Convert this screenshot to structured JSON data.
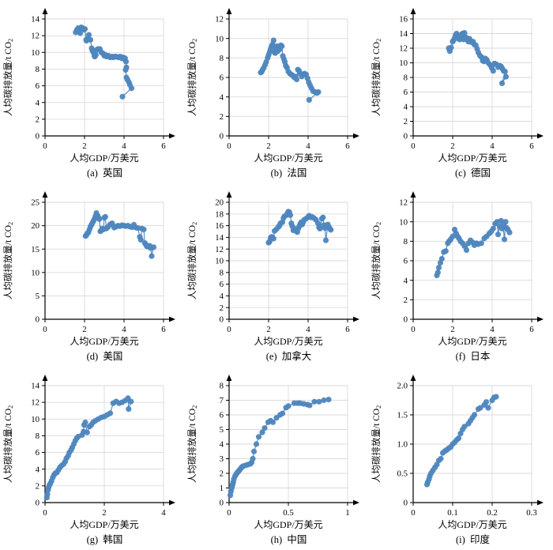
{
  "colors": {
    "marker": "#4E86BE",
    "line": "#4E86BE",
    "grid": "#DADADA",
    "axis": "#000000",
    "text": "#000000"
  },
  "axis_labels": {
    "x": "人均GDP/万美元",
    "y_main": "人均碳排放量/t CO",
    "y_sub": "2"
  },
  "chart_data": [
    {
      "type": "scatter",
      "caption": "(a)  英国",
      "country": "英国",
      "xlabel": "人均GDP/万美元",
      "ylabel": "人均碳排放量/t CO2",
      "xlim": [
        0,
        6
      ],
      "ylim": [
        0,
        14
      ],
      "xticks": [
        [
          0,
          "0"
        ],
        [
          2,
          "2"
        ],
        [
          4,
          "4"
        ],
        [
          6,
          "6"
        ]
      ],
      "yticks": [
        [
          0,
          "0"
        ],
        [
          2,
          "2"
        ],
        [
          4,
          "4"
        ],
        [
          6,
          "6"
        ],
        [
          8,
          "8"
        ],
        [
          10,
          "10"
        ],
        [
          12,
          "12"
        ],
        [
          14,
          "14"
        ]
      ],
      "x": [
        1.55,
        1.62,
        1.68,
        1.72,
        1.78,
        1.83,
        1.9,
        1.97,
        2.02,
        2.08,
        2.1,
        2.15,
        2.22,
        2.3,
        2.36,
        2.4,
        2.45,
        2.5,
        2.52,
        2.57,
        2.62,
        2.68,
        2.73,
        2.78,
        2.85,
        2.92,
        3.0,
        3.05,
        3.12,
        3.2,
        3.3,
        3.38,
        3.45,
        3.52,
        3.6,
        3.7,
        3.8,
        3.88,
        3.95,
        4.0,
        4.05,
        4.1,
        4.12,
        4.08,
        4.12,
        4.18,
        4.25,
        4.3,
        4.38,
        3.92
      ],
      "y": [
        12.4,
        12.7,
        12.9,
        12.6,
        12.3,
        13.0,
        12.9,
        12.7,
        12.8,
        11.5,
        11.4,
        11.6,
        12.1,
        11.5,
        10.5,
        10.2,
        10.0,
        9.6,
        9.5,
        9.7,
        10.3,
        10.4,
        10.4,
        10.4,
        10.0,
        9.9,
        9.6,
        9.7,
        9.5,
        9.6,
        9.4,
        9.5,
        9.4,
        9.5,
        9.5,
        9.4,
        9.5,
        9.3,
        9.4,
        9.2,
        9.3,
        8.9,
        8.2,
        7.9,
        7.0,
        6.7,
        6.4,
        6.1,
        5.7,
        4.7
      ]
    },
    {
      "type": "scatter",
      "caption": "(b)  法国",
      "country": "法国",
      "xlabel": "人均GDP/万美元",
      "ylabel": "人均碳排放量/t CO2",
      "xlim": [
        0,
        6
      ],
      "ylim": [
        0,
        12
      ],
      "xticks": [
        [
          0,
          "0"
        ],
        [
          2,
          "2"
        ],
        [
          4,
          "4"
        ],
        [
          6,
          "6"
        ]
      ],
      "yticks": [
        [
          0,
          "0"
        ],
        [
          2,
          "2"
        ],
        [
          4,
          "4"
        ],
        [
          6,
          "6"
        ],
        [
          8,
          "8"
        ],
        [
          10,
          "10"
        ],
        [
          12,
          "12"
        ]
      ],
      "x": [
        1.6,
        1.65,
        1.7,
        1.76,
        1.82,
        1.88,
        1.95,
        2.0,
        2.05,
        2.1,
        2.15,
        2.2,
        2.25,
        2.3,
        2.33,
        2.38,
        2.42,
        2.47,
        2.52,
        2.57,
        2.62,
        2.67,
        2.72,
        2.77,
        2.82,
        2.87,
        2.93,
        3.0,
        3.08,
        3.15,
        3.22,
        3.3,
        3.36,
        3.42,
        3.48,
        3.54,
        3.6,
        3.68,
        3.75,
        3.82,
        3.9,
        3.97,
        4.03,
        4.1,
        4.17,
        4.25,
        4.35,
        4.45,
        4.52,
        4.05
      ],
      "y": [
        6.5,
        6.6,
        6.8,
        7.0,
        7.3,
        7.6,
        8.0,
        8.3,
        8.6,
        8.9,
        9.2,
        9.4,
        9.8,
        8.6,
        8.5,
        9.0,
        9.2,
        8.7,
        9.1,
        8.9,
        9.3,
        9.2,
        8.2,
        7.9,
        7.6,
        7.2,
        7.0,
        6.6,
        6.4,
        6.3,
        6.2,
        6.0,
        6.1,
        5.8,
        6.8,
        6.7,
        6.4,
        6.1,
        6.3,
        6.4,
        6.3,
        5.9,
        5.5,
        5.2,
        4.9,
        4.6,
        4.5,
        4.4,
        4.5,
        3.7
      ]
    },
    {
      "type": "scatter",
      "caption": "(c)  德国",
      "country": "德国",
      "xlabel": "人均GDP/万美元",
      "ylabel": "人均碳排放量/t CO2",
      "xlim": [
        0,
        6
      ],
      "ylim": [
        0,
        16
      ],
      "xticks": [
        [
          0,
          "0"
        ],
        [
          2,
          "2"
        ],
        [
          4,
          "4"
        ],
        [
          6,
          "6"
        ]
      ],
      "yticks": [
        [
          0,
          "0"
        ],
        [
          2,
          "2"
        ],
        [
          4,
          "4"
        ],
        [
          6,
          "6"
        ],
        [
          8,
          "8"
        ],
        [
          10,
          "10"
        ],
        [
          12,
          "12"
        ],
        [
          14,
          "14"
        ],
        [
          16,
          "16"
        ]
      ],
      "x": [
        1.8,
        1.85,
        1.92,
        2.0,
        2.05,
        2.1,
        2.15,
        2.2,
        2.25,
        2.3,
        2.35,
        2.4,
        2.45,
        2.5,
        2.55,
        2.6,
        2.65,
        2.7,
        2.75,
        2.8,
        2.85,
        2.9,
        2.97,
        3.03,
        3.1,
        3.17,
        3.24,
        3.3,
        3.38,
        3.45,
        3.52,
        3.58,
        3.65,
        3.73,
        3.8,
        3.9,
        3.98,
        4.05,
        4.12,
        4.2,
        4.3,
        4.38,
        4.45,
        4.52,
        4.58,
        4.65,
        4.5,
        4.7
      ],
      "y": [
        12.0,
        11.6,
        12.1,
        12.9,
        13.1,
        13.4,
        13.8,
        14.0,
        13.5,
        13.3,
        13.2,
        13.6,
        13.9,
        14.0,
        13.2,
        14.1,
        13.5,
        13.4,
        13.1,
        12.9,
        13.3,
        13.0,
        12.8,
        12.9,
        12.5,
        12.4,
        11.9,
        11.4,
        11.0,
        10.8,
        10.3,
        10.2,
        10.6,
        10.4,
        10.0,
        9.7,
        9.3,
        8.9,
        9.9,
        9.8,
        9.4,
        9.6,
        9.5,
        9.2,
        8.9,
        8.8,
        7.2,
        8.1
      ]
    },
    {
      "type": "scatter",
      "caption": "(d)  美国",
      "country": "美国",
      "xlabel": "人均GDP/万美元",
      "ylabel": "人均碳排放量/t CO2",
      "xlim": [
        0,
        6
      ],
      "ylim": [
        0,
        25
      ],
      "xticks": [
        [
          0,
          "0"
        ],
        [
          2,
          "2"
        ],
        [
          4,
          "4"
        ],
        [
          6,
          "6"
        ]
      ],
      "yticks": [
        [
          0,
          "0"
        ],
        [
          5,
          "5"
        ],
        [
          10,
          "10"
        ],
        [
          15,
          "15"
        ],
        [
          20,
          "20"
        ],
        [
          25,
          "25"
        ]
      ],
      "x": [
        2.05,
        2.1,
        2.15,
        2.2,
        2.25,
        2.3,
        2.35,
        2.4,
        2.45,
        2.5,
        2.55,
        2.6,
        2.65,
        2.7,
        2.75,
        2.8,
        2.85,
        2.9,
        2.95,
        3.0,
        3.05,
        3.1,
        3.15,
        3.2,
        3.3,
        3.4,
        3.5,
        3.6,
        3.7,
        3.8,
        3.9,
        4.0,
        4.1,
        4.2,
        4.3,
        4.4,
        4.5,
        4.6,
        4.7,
        4.8,
        4.85,
        4.9,
        5.0,
        5.05,
        5.1,
        5.15,
        5.2,
        5.3,
        5.35,
        5.4,
        5.5
      ],
      "y": [
        17.8,
        18.0,
        18.4,
        18.6,
        19.2,
        19.8,
        20.2,
        20.6,
        21.0,
        21.4,
        22.0,
        22.7,
        22.2,
        21.8,
        21.4,
        18.8,
        19.0,
        19.4,
        19.2,
        21.7,
        21.9,
        19.4,
        19.6,
        19.8,
        20.3,
        20.5,
        19.6,
        19.8,
        20.0,
        19.9,
        20.1,
        20.0,
        19.9,
        20.0,
        19.8,
        19.7,
        20.2,
        19.6,
        19.5,
        17.6,
        17.0,
        19.4,
        19.2,
        16.3,
        16.0,
        15.6,
        15.5,
        15.7,
        15.2,
        13.5,
        15.4
      ]
    },
    {
      "type": "scatter",
      "caption": "(e)  加拿大",
      "country": "加拿大",
      "xlabel": "人均GDP/万美元",
      "ylabel": "人均碳排放量/t CO2",
      "xlim": [
        0,
        6
      ],
      "ylim": [
        0,
        20
      ],
      "xticks": [
        [
          0,
          "0"
        ],
        [
          2,
          "2"
        ],
        [
          4,
          "4"
        ],
        [
          6,
          "6"
        ]
      ],
      "yticks": [
        [
          0,
          "0"
        ],
        [
          2,
          "2"
        ],
        [
          4,
          "4"
        ],
        [
          6,
          "6"
        ],
        [
          8,
          "8"
        ],
        [
          10,
          "10"
        ],
        [
          12,
          "12"
        ],
        [
          14,
          "14"
        ],
        [
          16,
          "16"
        ],
        [
          18,
          "18"
        ],
        [
          20,
          "20"
        ]
      ],
      "x": [
        2.0,
        2.05,
        2.1,
        2.15,
        2.2,
        2.25,
        2.3,
        2.4,
        2.5,
        2.55,
        2.6,
        2.7,
        2.75,
        2.8,
        2.9,
        2.95,
        3.0,
        3.05,
        3.1,
        3.15,
        3.2,
        3.25,
        3.3,
        3.4,
        3.45,
        3.5,
        3.55,
        3.6,
        3.65,
        3.7,
        3.75,
        3.8,
        3.9,
        4.0,
        4.05,
        4.1,
        4.15,
        4.2,
        4.3,
        4.4,
        4.5,
        4.55,
        4.6,
        4.7,
        4.75,
        4.8,
        4.85,
        4.9,
        5.0,
        5.05,
        5.1,
        5.15
      ],
      "y": [
        13.1,
        13.3,
        13.9,
        14.1,
        14.0,
        13.8,
        15.1,
        15.4,
        15.8,
        16.0,
        16.4,
        16.6,
        17.3,
        17.6,
        17.8,
        18.1,
        18.4,
        18.3,
        17.8,
        16.4,
        15.9,
        15.2,
        15.5,
        15.1,
        14.9,
        15.5,
        15.9,
        16.3,
        16.6,
        16.2,
        16.6,
        17.0,
        17.2,
        17.5,
        17.7,
        17.6,
        17.4,
        17.5,
        17.3,
        17.0,
        16.4,
        15.7,
        15.5,
        17.2,
        17.4,
        16.1,
        15.6,
        13.5,
        16.2,
        15.8,
        15.5,
        15.3
      ]
    },
    {
      "type": "scatter",
      "caption": "(f)  日本",
      "country": "日本",
      "xlabel": "人均GDP/万美元",
      "ylabel": "人均碳排放量/t CO2",
      "xlim": [
        0,
        6
      ],
      "ylim": [
        0,
        12
      ],
      "xticks": [
        [
          0,
          "0"
        ],
        [
          2,
          "2"
        ],
        [
          4,
          "4"
        ],
        [
          6,
          "6"
        ]
      ],
      "yticks": [
        [
          0,
          "0"
        ],
        [
          2,
          "2"
        ],
        [
          4,
          "4"
        ],
        [
          6,
          "6"
        ],
        [
          8,
          "8"
        ],
        [
          10,
          "10"
        ],
        [
          12,
          "12"
        ]
      ],
      "x": [
        1.2,
        1.25,
        1.3,
        1.38,
        1.45,
        1.55,
        1.65,
        1.75,
        1.82,
        1.9,
        2.0,
        2.1,
        2.18,
        2.25,
        2.32,
        2.4,
        2.5,
        2.6,
        2.7,
        2.8,
        2.9,
        3.0,
        3.1,
        3.2,
        3.3,
        3.45,
        3.6,
        3.72,
        3.85,
        3.95,
        4.05,
        4.15,
        4.25,
        4.3,
        4.38,
        4.45,
        4.5,
        4.55,
        4.62,
        4.68,
        4.72,
        4.8,
        4.88
      ],
      "y": [
        4.5,
        4.8,
        5.3,
        5.8,
        6.2,
        6.9,
        7.0,
        7.8,
        8.0,
        8.2,
        8.5,
        9.2,
        8.8,
        8.5,
        8.3,
        8.0,
        7.8,
        7.5,
        7.1,
        7.8,
        8.1,
        7.9,
        7.6,
        7.8,
        7.7,
        7.8,
        8.3,
        8.5,
        8.8,
        9.0,
        9.3,
        9.8,
        10.0,
        8.7,
        9.5,
        10.1,
        9.3,
        9.6,
        8.2,
        10.0,
        9.4,
        9.2,
        8.9
      ]
    },
    {
      "type": "scatter",
      "caption": "(g)  韩国",
      "country": "韩国",
      "xlabel": "人均GDP/万美元",
      "ylabel": "人均碳排放量/t CO2",
      "xlim": [
        0,
        4
      ],
      "ylim": [
        0,
        14
      ],
      "xticks": [
        [
          0,
          "0"
        ],
        [
          2,
          "2"
        ],
        [
          4,
          "4"
        ]
      ],
      "yticks": [
        [
          0,
          "0"
        ],
        [
          2,
          "2"
        ],
        [
          4,
          "4"
        ],
        [
          6,
          "6"
        ],
        [
          8,
          "8"
        ],
        [
          10,
          "10"
        ],
        [
          12,
          "12"
        ],
        [
          14,
          "14"
        ]
      ],
      "x": [
        0.06,
        0.08,
        0.1,
        0.12,
        0.15,
        0.18,
        0.22,
        0.26,
        0.3,
        0.34,
        0.4,
        0.45,
        0.5,
        0.55,
        0.62,
        0.68,
        0.72,
        0.78,
        0.82,
        0.88,
        0.92,
        0.97,
        1.02,
        1.07,
        1.12,
        1.25,
        1.3,
        1.32,
        1.36,
        1.42,
        1.5,
        1.56,
        1.62,
        1.7,
        1.8,
        1.9,
        2.0,
        2.1,
        2.2,
        2.3,
        2.4,
        2.5,
        2.6,
        2.7,
        2.8,
        2.82,
        2.9
      ],
      "y": [
        0.6,
        1.0,
        1.5,
        1.8,
        2.1,
        2.3,
        2.6,
        3.0,
        3.3,
        3.5,
        3.6,
        3.9,
        4.2,
        4.4,
        4.6,
        4.9,
        5.3,
        5.6,
        6.0,
        6.3,
        6.6,
        7.0,
        7.4,
        7.7,
        7.9,
        8.1,
        8.5,
        9.3,
        9.6,
        8.4,
        9.1,
        9.3,
        9.6,
        9.8,
        10.0,
        10.2,
        10.3,
        10.5,
        10.7,
        11.9,
        12.1,
        11.9,
        12.0,
        12.2,
        12.5,
        11.2,
        12.1
      ]
    },
    {
      "type": "scatter",
      "caption": "(h)  中国",
      "country": "中国",
      "xlabel": "人均GDP/万美元",
      "ylabel": "人均碳排放量/t CO2",
      "xlim": [
        0,
        1
      ],
      "ylim": [
        0,
        8
      ],
      "xticks": [
        [
          0,
          "0"
        ],
        [
          0.5,
          "0.5"
        ],
        [
          1,
          "1"
        ]
      ],
      "yticks": [
        [
          0,
          "0"
        ],
        [
          1,
          "1"
        ],
        [
          2,
          "2"
        ],
        [
          3,
          "3"
        ],
        [
          4,
          "4"
        ],
        [
          5,
          "5"
        ],
        [
          6,
          "6"
        ],
        [
          7,
          "7"
        ],
        [
          8,
          "8"
        ]
      ],
      "x": [
        0.01,
        0.015,
        0.02,
        0.025,
        0.03,
        0.035,
        0.04,
        0.05,
        0.06,
        0.07,
        0.08,
        0.09,
        0.1,
        0.11,
        0.12,
        0.14,
        0.16,
        0.18,
        0.19,
        0.2,
        0.21,
        0.23,
        0.25,
        0.28,
        0.3,
        0.33,
        0.35,
        0.37,
        0.4,
        0.43,
        0.45,
        0.48,
        0.5,
        0.55,
        0.58,
        0.6,
        0.63,
        0.66,
        0.68,
        0.72,
        0.76,
        0.8,
        0.84
      ],
      "y": [
        0.5,
        0.75,
        0.95,
        1.1,
        1.25,
        1.4,
        1.6,
        1.8,
        1.95,
        2.05,
        2.15,
        2.25,
        2.35,
        2.45,
        2.5,
        2.55,
        2.6,
        2.65,
        2.75,
        3.0,
        3.5,
        4.0,
        4.5,
        4.8,
        5.1,
        5.5,
        5.6,
        5.5,
        5.8,
        6.0,
        6.1,
        6.5,
        6.6,
        6.8,
        6.8,
        6.8,
        6.75,
        6.7,
        6.65,
        6.9,
        6.9,
        7.0,
        7.05
      ]
    },
    {
      "type": "scatter",
      "caption": "(i)  印度",
      "country": "印度",
      "xlabel": "人均GDP/万美元",
      "ylabel": "人均碳排放量/t CO2",
      "xlim": [
        0,
        0.3
      ],
      "ylim": [
        0,
        2.0
      ],
      "xticks": [
        [
          0,
          "0"
        ],
        [
          0.1,
          "0.1"
        ],
        [
          0.2,
          "0.2"
        ],
        [
          0.3,
          "0.3"
        ]
      ],
      "yticks": [
        [
          0,
          "0"
        ],
        [
          0.5,
          "0.5"
        ],
        [
          1.0,
          "1.0"
        ],
        [
          1.5,
          "1.5"
        ],
        [
          2.0,
          "2.0"
        ]
      ],
      "x": [
        0.035,
        0.037,
        0.04,
        0.042,
        0.045,
        0.05,
        0.055,
        0.06,
        0.065,
        0.07,
        0.075,
        0.08,
        0.085,
        0.09,
        0.095,
        0.1,
        0.105,
        0.11,
        0.115,
        0.12,
        0.125,
        0.13,
        0.14,
        0.145,
        0.15,
        0.155,
        0.165,
        0.17,
        0.18,
        0.185,
        0.19,
        0.2,
        0.205,
        0.21
      ],
      "y": [
        0.31,
        0.35,
        0.4,
        0.45,
        0.5,
        0.55,
        0.6,
        0.65,
        0.72,
        0.75,
        0.85,
        0.88,
        0.9,
        0.93,
        0.95,
        1.0,
        1.03,
        1.07,
        1.1,
        1.18,
        1.25,
        1.3,
        1.35,
        1.4,
        1.45,
        1.5,
        1.6,
        1.62,
        1.67,
        1.72,
        1.62,
        1.75,
        1.8,
        1.81
      ]
    }
  ]
}
